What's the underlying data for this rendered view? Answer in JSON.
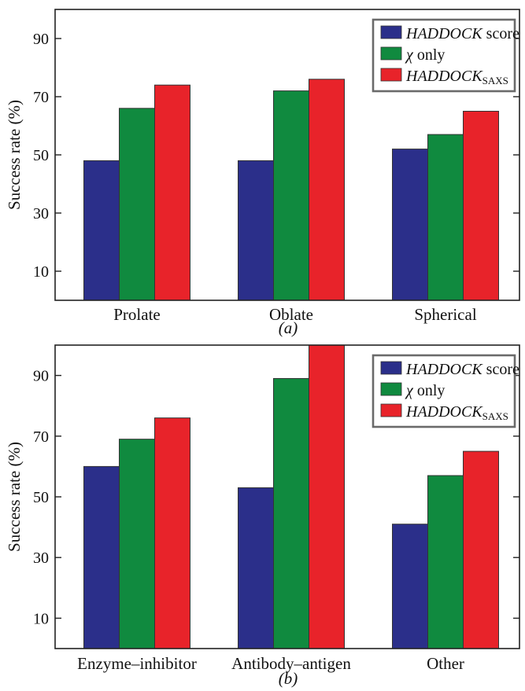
{
  "colors": {
    "haddock_score": "#2b2f8a",
    "chi_only": "#108a3f",
    "haddock_saxs": "#e8232a",
    "legend_border": "#6a6a6a"
  },
  "legend": {
    "s1_main": "HADDOCK",
    "s1_rest": " score",
    "s2_greek": "χ",
    "s2_rest": " only",
    "s3_main": "HADDOCK",
    "s3_sub": "SAXS"
  },
  "chart_data": [
    {
      "type": "bar",
      "panel_label": "(a)",
      "ylabel": "Success rate (%)",
      "ylim": [
        0,
        100
      ],
      "yticks": [
        "10",
        "30",
        "50",
        "70",
        "90"
      ],
      "categories": [
        "Prolate",
        "Oblate",
        "Spherical"
      ],
      "series": [
        {
          "name": "HADDOCK score",
          "values": [
            48,
            48,
            52
          ]
        },
        {
          "name": "χ only",
          "values": [
            66,
            72,
            57
          ]
        },
        {
          "name": "HADDOCK SAXS",
          "values": [
            74,
            76,
            65
          ]
        }
      ],
      "legend_position": "top-right",
      "grid": false
    },
    {
      "type": "bar",
      "panel_label": "(b)",
      "ylabel": "Success rate (%)",
      "ylim": [
        0,
        100
      ],
      "yticks": [
        "10",
        "30",
        "50",
        "70",
        "90"
      ],
      "categories": [
        "Enzyme–inhibitor",
        "Antibody–antigen",
        "Other"
      ],
      "series": [
        {
          "name": "HADDOCK score",
          "values": [
            60,
            53,
            41
          ]
        },
        {
          "name": "χ only",
          "values": [
            69,
            89,
            57
          ]
        },
        {
          "name": "HADDOCK SAXS",
          "values": [
            76,
            100,
            65
          ]
        }
      ],
      "legend_position": "top-right",
      "grid": false
    }
  ]
}
